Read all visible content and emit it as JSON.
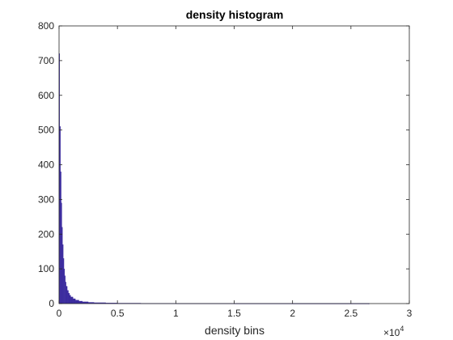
{
  "chart_data": {
    "type": "bar",
    "title": "density histogram",
    "xlabel": "density bins",
    "ylabel": "",
    "x_exponent_label": "×10",
    "x_exponent_power": "4",
    "xlim": [
      0,
      30000
    ],
    "ylim": [
      0,
      800
    ],
    "x_ticks": [
      0,
      5000,
      10000,
      15000,
      20000,
      25000,
      30000
    ],
    "x_tick_labels": [
      "0",
      "0.5",
      "1",
      "1.5",
      "2",
      "2.5",
      "3"
    ],
    "y_ticks": [
      0,
      100,
      200,
      300,
      400,
      500,
      600,
      700,
      800
    ],
    "y_tick_labels": [
      "0",
      "100",
      "200",
      "300",
      "400",
      "500",
      "600",
      "700",
      "800"
    ],
    "grid": false,
    "bar_color": "#3b2b9e",
    "bins": {
      "x": [
        0,
        60,
        120,
        180,
        240,
        300,
        360,
        420,
        480,
        540,
        600,
        700,
        800,
        900,
        1000,
        1200,
        1400,
        1700,
        2000,
        2500,
        3000,
        4000,
        5000,
        7000,
        10000,
        15000,
        20000,
        26500
      ],
      "values": [
        720,
        510,
        380,
        290,
        220,
        170,
        130,
        100,
        80,
        62,
        50,
        38,
        30,
        24,
        19,
        14,
        10,
        7,
        5,
        3.5,
        2.5,
        1.8,
        1.2,
        0.8,
        0.5,
        0.4,
        0.3,
        0.2
      ]
    }
  }
}
